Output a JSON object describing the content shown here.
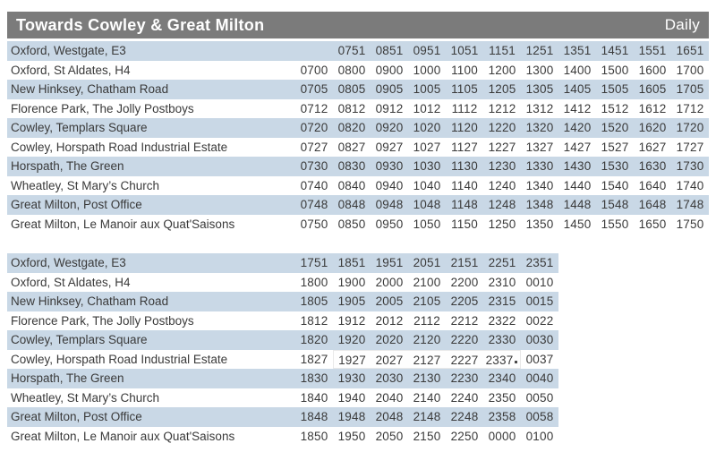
{
  "header": {
    "title": "Towards Cowley & Great Milton",
    "period_label": "Daily"
  },
  "colors": {
    "header_bg": "#7b7b7b",
    "header_text": "#ffffff",
    "row_stripe": "#c9d8e6",
    "body_text": "#3a3a3a"
  },
  "timetables": [
    {
      "id": "early",
      "rows": [
        {
          "stop": "Oxford, Westgate, E3",
          "times": [
            "",
            "0751",
            "0851",
            "0951",
            "1051",
            "1151",
            "1251",
            "1351",
            "1451",
            "1551",
            "1651"
          ]
        },
        {
          "stop": "Oxford, St Aldates, H4",
          "times": [
            "0700",
            "0800",
            "0900",
            "1000",
            "1100",
            "1200",
            "1300",
            "1400",
            "1500",
            "1600",
            "1700"
          ]
        },
        {
          "stop": "New Hinksey, Chatham Road",
          "times": [
            "0705",
            "0805",
            "0905",
            "1005",
            "1105",
            "1205",
            "1305",
            "1405",
            "1505",
            "1605",
            "1705"
          ]
        },
        {
          "stop": "Florence Park, The Jolly Postboys",
          "times": [
            "0712",
            "0812",
            "0912",
            "1012",
            "1112",
            "1212",
            "1312",
            "1412",
            "1512",
            "1612",
            "1712"
          ]
        },
        {
          "stop": "Cowley, Templars Square",
          "times": [
            "0720",
            "0820",
            "0920",
            "1020",
            "1120",
            "1220",
            "1320",
            "1420",
            "1520",
            "1620",
            "1720"
          ]
        },
        {
          "stop": "Cowley, Horspath Road Industrial Estate",
          "times": [
            "0727",
            "0827",
            "0927",
            "1027",
            "1127",
            "1227",
            "1327",
            "1427",
            "1527",
            "1627",
            "1727"
          ]
        },
        {
          "stop": "Horspath, The Green",
          "times": [
            "0730",
            "0830",
            "0930",
            "1030",
            "1130",
            "1230",
            "1330",
            "1430",
            "1530",
            "1630",
            "1730"
          ]
        },
        {
          "stop": "Wheatley, St Mary’s Church",
          "times": [
            "0740",
            "0840",
            "0940",
            "1040",
            "1140",
            "1240",
            "1340",
            "1440",
            "1540",
            "1640",
            "1740"
          ]
        },
        {
          "stop": "Great Milton, Post Office",
          "times": [
            "0748",
            "0848",
            "0948",
            "1048",
            "1148",
            "1248",
            "1348",
            "1448",
            "1548",
            "1648",
            "1748"
          ]
        },
        {
          "stop": "Great Milton, Le Manoir aux Quat'Saisons",
          "times": [
            "0750",
            "0850",
            "0950",
            "1050",
            "1150",
            "1250",
            "1350",
            "1450",
            "1550",
            "1650",
            "1750"
          ]
        }
      ]
    },
    {
      "id": "late",
      "overlay_patch": {
        "row": 5,
        "col_start": 1,
        "col_end": 5,
        "dot_after_col": 5
      },
      "rows": [
        {
          "stop": "Oxford, Westgate, E3",
          "times": [
            "1751",
            "1851",
            "1951",
            "2051",
            "2151",
            "2251",
            "2351"
          ]
        },
        {
          "stop": "Oxford, St Aldates, H4",
          "times": [
            "1800",
            "1900",
            "2000",
            "2100",
            "2200",
            "2310",
            "0010"
          ]
        },
        {
          "stop": "New Hinksey, Chatham Road",
          "times": [
            "1805",
            "1905",
            "2005",
            "2105",
            "2205",
            "2315",
            "0015"
          ]
        },
        {
          "stop": "Florence Park, The Jolly Postboys",
          "times": [
            "1812",
            "1912",
            "2012",
            "2112",
            "2212",
            "2322",
            "0022"
          ]
        },
        {
          "stop": "Cowley, Templars Square",
          "times": [
            "1820",
            "1920",
            "2020",
            "2120",
            "2220",
            "2330",
            "0030"
          ]
        },
        {
          "stop": "Cowley, Horspath Road Industrial Estate",
          "times": [
            "1827",
            "1927",
            "2027",
            "2127",
            "2227",
            "2337",
            "0037"
          ]
        },
        {
          "stop": "Horspath, The Green",
          "times": [
            "1830",
            "1930",
            "2030",
            "2130",
            "2230",
            "2340",
            "0040"
          ]
        },
        {
          "stop": "Wheatley, St Mary’s Church",
          "times": [
            "1840",
            "1940",
            "2040",
            "2140",
            "2240",
            "2350",
            "0050"
          ]
        },
        {
          "stop": "Great Milton, Post Office",
          "times": [
            "1848",
            "1948",
            "2048",
            "2148",
            "2248",
            "2358",
            "0058"
          ]
        },
        {
          "stop": "Great Milton, Le Manoir aux Quat'Saisons",
          "times": [
            "1850",
            "1950",
            "2050",
            "2150",
            "2250",
            "0000",
            "0100"
          ]
        }
      ]
    }
  ]
}
